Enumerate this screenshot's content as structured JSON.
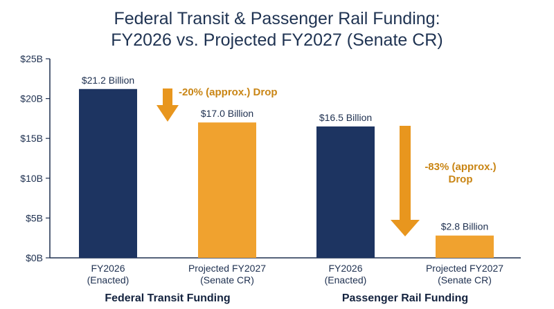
{
  "chart_data": {
    "type": "bar",
    "title_lines": [
      "Federal Transit & Passenger Rail Funding:",
      "FY2026 vs. Projected FY2027 (Senate CR)"
    ],
    "yticks": [
      "$0B",
      "$5B",
      "$10B",
      "$15B",
      "$20B",
      "$25B"
    ],
    "ylim": [
      0,
      25
    ],
    "unit": "Billion USD",
    "grid": false,
    "legend": "none",
    "colors": {
      "enacted": "#1d3461",
      "projected": "#f0a22f",
      "arrow": "#e8961e",
      "note_text": "#c98514"
    },
    "groups": [
      {
        "name": "Federal Transit Funding",
        "bars": [
          {
            "category_lines": [
              "FY2026",
              "(Enacted)"
            ],
            "value": 21.2,
            "label": "$21.2 Billion",
            "kind": "enacted"
          },
          {
            "category_lines": [
              "Projected FY2027",
              "(Senate CR)"
            ],
            "value": 17.0,
            "label": "$17.0 Billion",
            "kind": "projected"
          }
        ],
        "annotation": {
          "lines": [
            "-20% (approx.) Drop"
          ],
          "from": 21.2,
          "to": 17.0
        }
      },
      {
        "name": "Passenger Rail Funding",
        "bars": [
          {
            "category_lines": [
              "FY2026",
              "(Enacted)"
            ],
            "value": 16.5,
            "label": "$16.5 Billion",
            "kind": "enacted"
          },
          {
            "category_lines": [
              "Projected FY2027",
              "(Senate CR)"
            ],
            "value": 2.8,
            "label": "$2.8 Billion",
            "kind": "projected"
          }
        ],
        "annotation": {
          "lines": [
            "-83% (approx.)",
            "Drop"
          ],
          "from": 16.5,
          "to": 2.8
        }
      }
    ]
  }
}
